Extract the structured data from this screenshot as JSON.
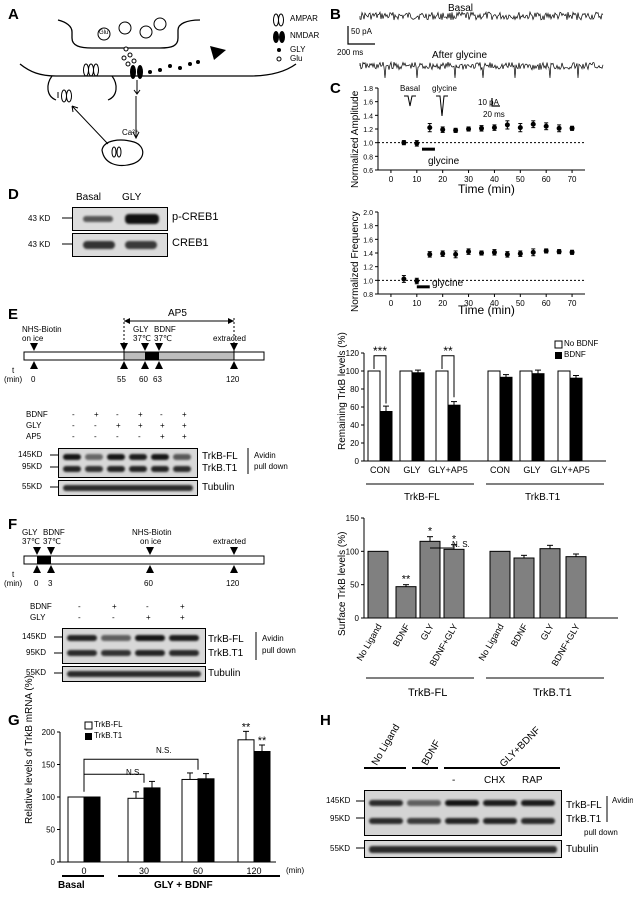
{
  "panels": {
    "A": "A",
    "B": "B",
    "C": "C",
    "D": "D",
    "E": "E",
    "F": "F",
    "G": "G",
    "H": "H"
  },
  "panelA": {
    "legend": [
      "AMPAR",
      "NMDAR",
      "GLY",
      "Glu"
    ],
    "vesicle_label": "Glu",
    "ca_label": "Ca²⁺"
  },
  "panelB": {
    "basal": "Basal",
    "after": "After glycine",
    "scale_y": "50 pA",
    "scale_x": "200 ms"
  },
  "panelC": {
    "amp": {
      "ylabel": "Normalized Amplitude",
      "xlabel": "Time (min)",
      "inset_basal": "Basal",
      "inset_glycine": "glycine",
      "scale_y": "10 pA",
      "scale_x": "20 ms",
      "bar_label": "glycine",
      "yticks": [
        "0.6",
        "0.8",
        "1.0",
        "1.2",
        "1.4",
        "1.6",
        "1.8"
      ],
      "xticks": [
        "0",
        "10",
        "20",
        "30",
        "40",
        "50",
        "60",
        "70"
      ]
    },
    "freq": {
      "ylabel": "Normalized Frequency",
      "xlabel": "Time (min)",
      "bar_label": "glycine",
      "yticks": [
        "0.8",
        "1.0",
        "1.2",
        "1.4",
        "1.6",
        "1.8",
        "2.0"
      ],
      "xticks": [
        "0",
        "10",
        "20",
        "30",
        "40",
        "50",
        "60",
        "70"
      ]
    }
  },
  "panelD": {
    "cols": [
      "Basal",
      "GLY"
    ],
    "rows": [
      {
        "kd": "43 KD",
        "name": "p-CREB1"
      },
      {
        "kd": "43 KD",
        "name": "CREB1"
      }
    ]
  },
  "panelE": {
    "timeline": {
      "ap5": "AP5",
      "nhs": "NHS-Biotin",
      "nhs2": "on ice",
      "gly": "GLY",
      "bdnf": "BDNF",
      "gly_temp": "37℃",
      "bdnf_temp": "37℃",
      "extracted": "extracted",
      "t": "t",
      "min": "(min)",
      "ticks": [
        "0",
        "55",
        "60",
        "63",
        "120"
      ]
    },
    "blot": {
      "conditions": [
        {
          "name": "BDNF",
          "values": [
            "-",
            "+",
            "-",
            "+",
            "-",
            "+"
          ]
        },
        {
          "name": "GLY",
          "values": [
            "-",
            "-",
            "+",
            "+",
            "+",
            "+"
          ]
        },
        {
          "name": "AP5",
          "values": [
            "-",
            "-",
            "-",
            "-",
            "+",
            "+"
          ]
        }
      ],
      "kd": [
        "145KD",
        "95KD",
        "55KD"
      ],
      "bands": [
        "TrkB-FL",
        "TrkB.T1",
        "Tubulin"
      ],
      "method": [
        "Avidin",
        "pull down"
      ]
    }
  },
  "panelF": {
    "timeline": {
      "gly": "GLY",
      "bdnf": "BDNF",
      "gly_temp": "37℃",
      "bdnf_temp": "37℃",
      "nhs": "NHS-Biotin",
      "nhs2": "on ice",
      "extracted": "extracted",
      "t": "t",
      "min": "(min)",
      "ticks": [
        "0",
        "3",
        "60",
        "120"
      ]
    },
    "blot": {
      "conditions": [
        {
          "name": "BDNF",
          "values": [
            "-",
            "+",
            "-",
            "+"
          ]
        },
        {
          "name": "GLY",
          "values": [
            "-",
            "-",
            "+",
            "+"
          ]
        }
      ],
      "kd": [
        "145KD",
        "95KD",
        "55KD"
      ],
      "bands": [
        "TrkB-FL",
        "TrkB.T1",
        "Tubulin"
      ],
      "method": [
        "Avidin",
        "pull down"
      ]
    }
  },
  "panelH": {
    "groups": [
      "No Ligand",
      "BDNF",
      "GLY+BDNF"
    ],
    "sub": [
      "-",
      "CHX",
      "RAP"
    ],
    "kd": [
      "145KD",
      "95KD",
      "55KD"
    ],
    "bands": [
      "TrkB-FL",
      "TrkB.T1",
      "Tubulin"
    ],
    "method": [
      "Avidin",
      "pull down"
    ]
  },
  "chart_data": [
    {
      "id": "C-amplitude",
      "type": "scatter",
      "ylabel": "Normalized Amplitude",
      "xlabel": "Time (min)",
      "xlim": [
        -5,
        75
      ],
      "ylim": [
        0.6,
        1.8
      ],
      "baseline": 1.0,
      "x": [
        5,
        10,
        15,
        20,
        25,
        30,
        35,
        40,
        45,
        50,
        55,
        60,
        65,
        70
      ],
      "y": [
        1.0,
        0.99,
        1.22,
        1.19,
        1.18,
        1.2,
        1.21,
        1.22,
        1.26,
        1.22,
        1.27,
        1.24,
        1.21,
        1.21
      ],
      "err": [
        0.03,
        0.04,
        0.06,
        0.04,
        0.03,
        0.03,
        0.04,
        0.04,
        0.06,
        0.06,
        0.05,
        0.05,
        0.05,
        0.03
      ],
      "treatment_bar": [
        12,
        17
      ]
    },
    {
      "id": "C-frequency",
      "type": "scatter",
      "ylabel": "Normalized Frequency",
      "xlabel": "Time (min)",
      "xlim": [
        -5,
        75
      ],
      "ylim": [
        0.8,
        2.0
      ],
      "baseline": 1.0,
      "x": [
        5,
        10,
        15,
        20,
        25,
        30,
        35,
        40,
        45,
        50,
        55,
        60,
        65,
        70
      ],
      "y": [
        1.02,
        0.99,
        1.38,
        1.39,
        1.38,
        1.42,
        1.4,
        1.41,
        1.38,
        1.39,
        1.41,
        1.43,
        1.42,
        1.41
      ],
      "err": [
        0.05,
        0.04,
        0.04,
        0.04,
        0.05,
        0.04,
        0.03,
        0.04,
        0.04,
        0.04,
        0.05,
        0.03,
        0.03,
        0.03
      ],
      "treatment_bar": [
        10,
        15
      ]
    },
    {
      "id": "E-bar",
      "type": "bar",
      "ylabel": "Remaining TrkB levels (%)",
      "ylim": [
        0,
        120
      ],
      "yticks": [
        "0",
        "20",
        "40",
        "60",
        "80",
        "100",
        "120"
      ],
      "categories": [
        "CON",
        "GLY",
        "GLY+AP5",
        "CON",
        "GLY",
        "GLY+AP5"
      ],
      "groups": [
        "TrkB-FL",
        "TrkB.T1"
      ],
      "legend": [
        "No BDNF",
        "BDNF"
      ],
      "series": [
        {
          "name": "No BDNF",
          "values": [
            100,
            100,
            100,
            100,
            100,
            100
          ],
          "err": [
            0,
            0,
            0,
            0,
            0,
            0
          ]
        },
        {
          "name": "BDNF",
          "values": [
            55,
            98,
            62,
            93,
            97,
            92
          ],
          "err": [
            6,
            3,
            4,
            3,
            4,
            3
          ]
        }
      ],
      "significance": [
        {
          "category": 0,
          "label": "***"
        },
        {
          "category": 2,
          "label": "**"
        }
      ]
    },
    {
      "id": "F-bar",
      "type": "bar",
      "ylabel": "Surface TrkB levels (%)",
      "ylim": [
        0,
        150
      ],
      "yticks": [
        "0",
        "50",
        "100",
        "150"
      ],
      "categories": [
        "No Ligand",
        "BDNF",
        "GLY",
        "BDNF+GLY",
        "No Ligand",
        "BDNF",
        "GLY",
        "BDNF+GLY"
      ],
      "groups": [
        "TrkB-FL",
        "TrkB.T1"
      ],
      "values": [
        100,
        47,
        115,
        103,
        100,
        90,
        104,
        92
      ],
      "err": [
        0,
        3,
        7,
        7,
        0,
        4,
        5,
        4
      ],
      "significance_labels": [
        "",
        "**",
        "*",
        "*",
        "",
        "",
        "",
        ""
      ],
      "bracket_label": "N. S."
    },
    {
      "id": "G-bar",
      "type": "bar",
      "ylabel": "Relative levels of TrkB mRNA (%)",
      "ylim": [
        0,
        200
      ],
      "yticks": [
        "0",
        "50",
        "100",
        "150",
        "200"
      ],
      "categories": [
        "0",
        "30",
        "60",
        "120"
      ],
      "unit": "(min)",
      "groups": [
        "Basal",
        "GLY + BDNF"
      ],
      "legend": [
        "TrkB-FL",
        "TrkB.T1"
      ],
      "series": [
        {
          "name": "TrkB-FL",
          "values": [
            100,
            98,
            127,
            188
          ],
          "err": [
            0,
            10,
            10,
            13
          ]
        },
        {
          "name": "TrkB.T1",
          "values": [
            100,
            114,
            128,
            170
          ],
          "err": [
            0,
            10,
            8,
            10
          ]
        }
      ],
      "significance": [
        "",
        "",
        "",
        "**"
      ],
      "brackets": [
        "N.S.",
        "N.S."
      ]
    }
  ]
}
